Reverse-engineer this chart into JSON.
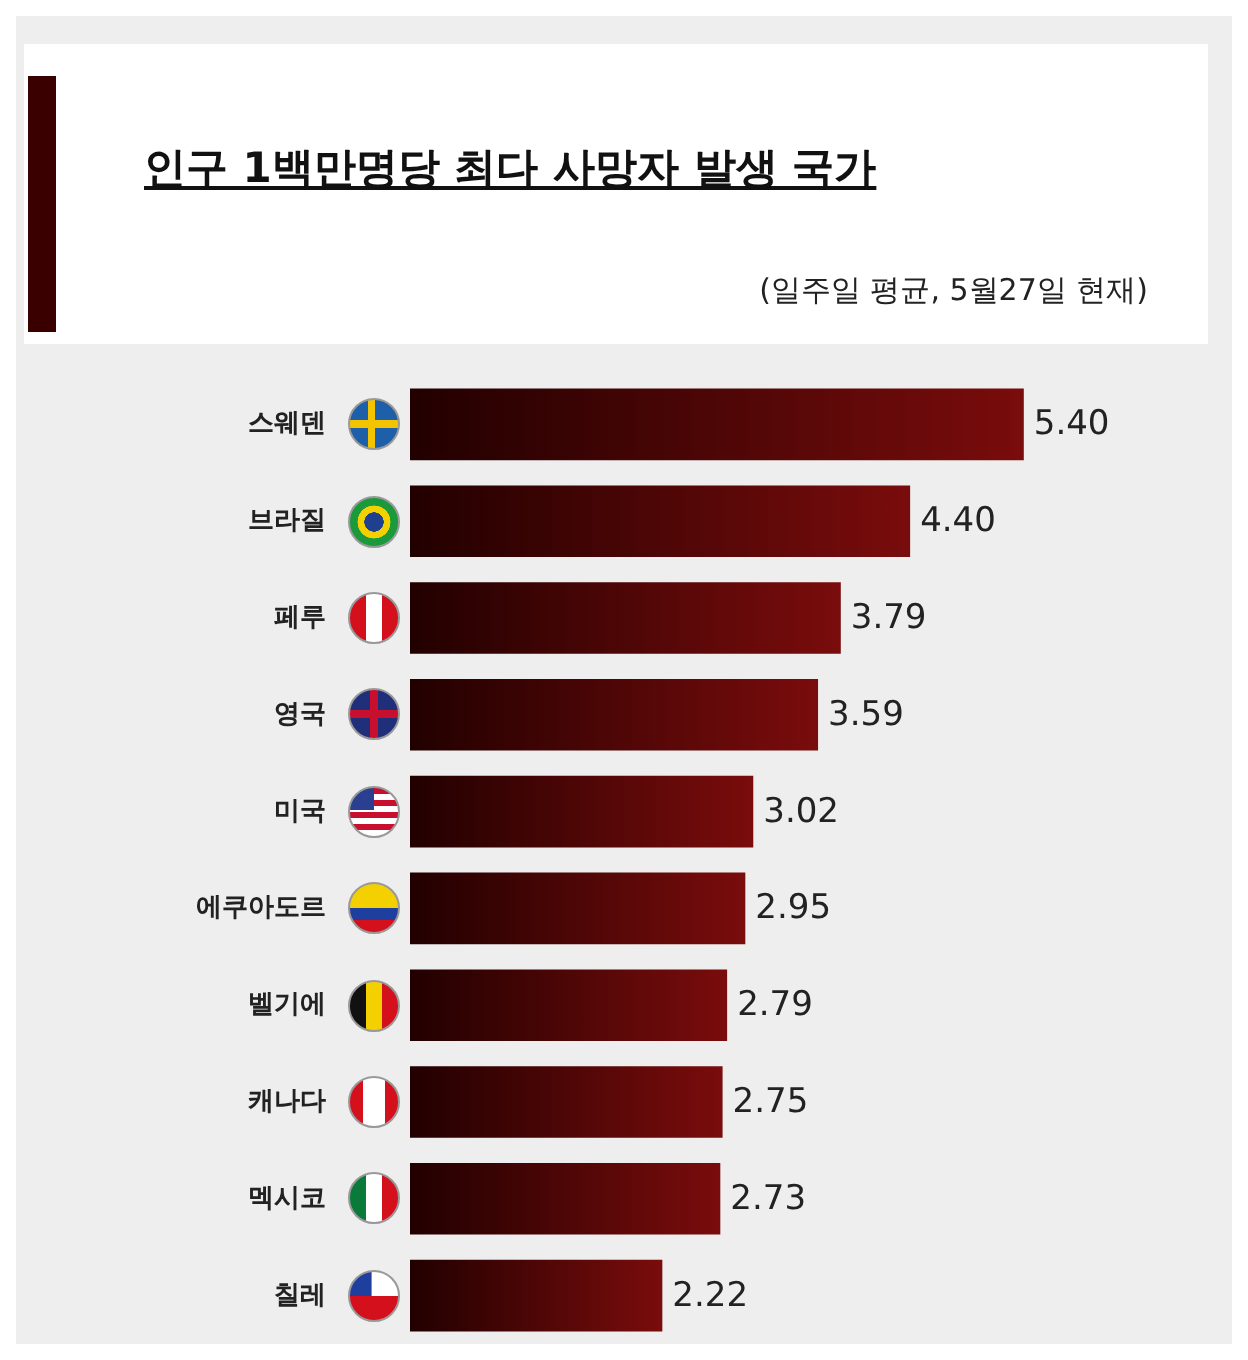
{
  "chart_data": {
    "type": "bar",
    "orientation": "horizontal",
    "title": "인구 1백만명당 최다 사망자 발생 국가",
    "subtitle": "(일주일 평균, 5월27일 현재)",
    "categories": [
      "스웨덴",
      "브라질",
      "페루",
      "영국",
      "미국",
      "에쿠아도르",
      "벨기에",
      "캐나다",
      "멕시코",
      "칠레"
    ],
    "values": [
      5.4,
      4.4,
      3.79,
      3.59,
      3.02,
      2.95,
      2.79,
      2.75,
      2.73,
      2.22
    ],
    "value_labels": [
      "5.40",
      "4.40",
      "3.79",
      "3.59",
      "3.02",
      "2.95",
      "2.79",
      "2.75",
      "2.73",
      "2.22"
    ],
    "color": "#7a0c0c"
  }
}
